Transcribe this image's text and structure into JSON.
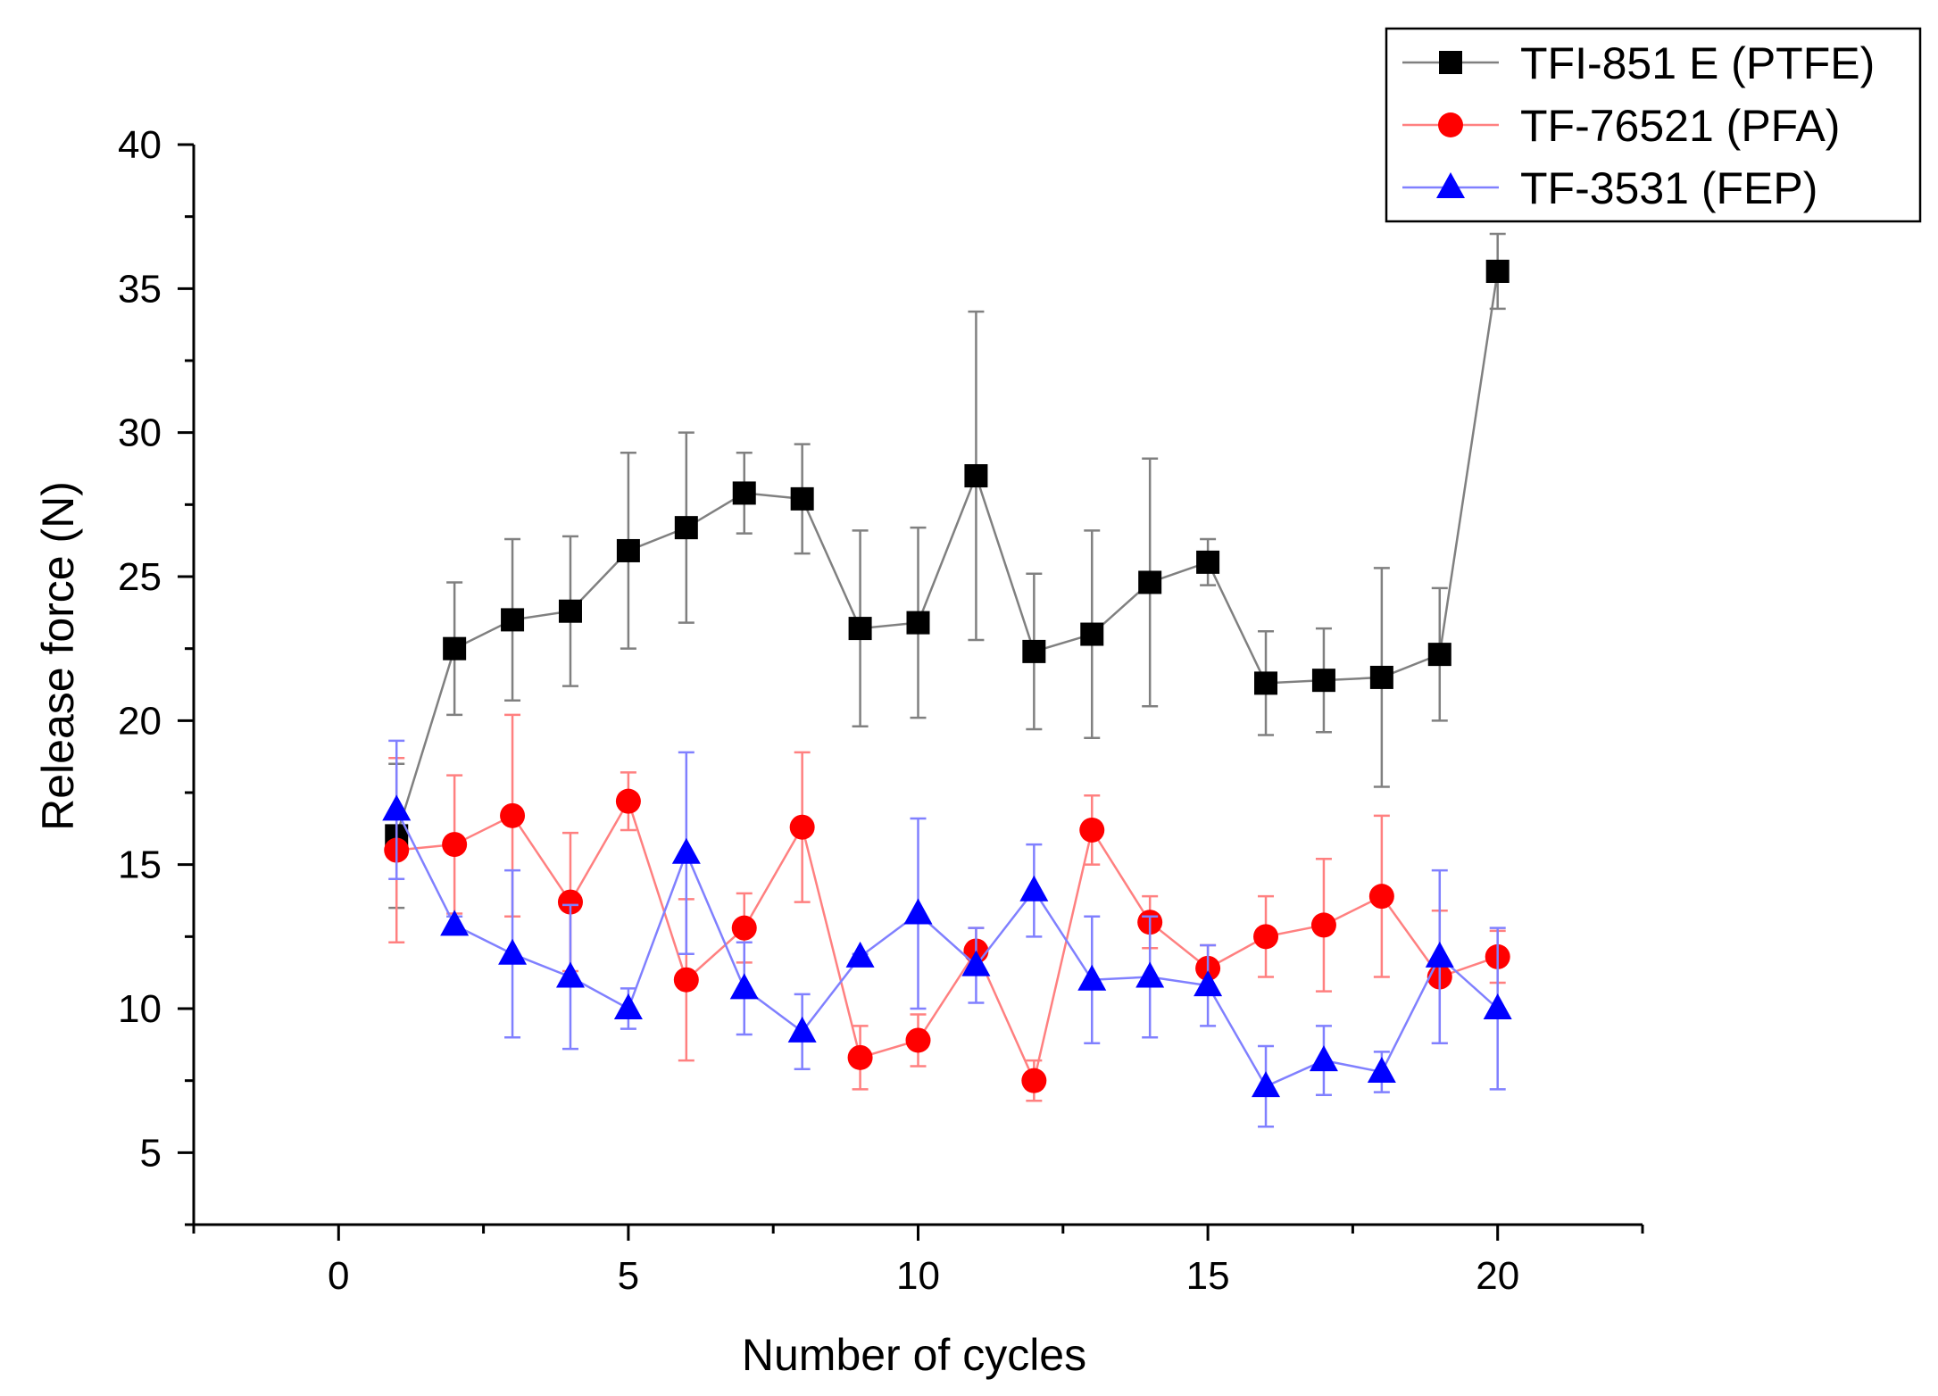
{
  "chart_data": {
    "type": "line",
    "title": "",
    "xlabel": "Number of cycles",
    "ylabel": "Release force (N)",
    "xlim": [
      -2.5,
      22.5
    ],
    "ylim": [
      2.5,
      40
    ],
    "x_ticks": [
      0,
      5,
      10,
      15,
      20
    ],
    "x_tick_labels": [
      "0",
      "5",
      "10",
      "15",
      "20"
    ],
    "y_ticks": [
      5,
      10,
      15,
      20,
      25,
      30,
      35,
      40
    ],
    "y_tick_labels": [
      "5",
      "10",
      "15",
      "20",
      "25",
      "30",
      "35",
      "40"
    ],
    "grid": false,
    "legend_position": "top-right",
    "x": [
      1,
      2,
      3,
      4,
      5,
      6,
      7,
      8,
      9,
      10,
      11,
      12,
      13,
      14,
      15,
      16,
      17,
      18,
      19,
      20
    ],
    "series": [
      {
        "name": "TFI-851 E (PTFE)",
        "color": "#000000",
        "line_color": "#808080",
        "marker": "square",
        "values": [
          16.0,
          22.5,
          23.5,
          23.8,
          25.9,
          26.7,
          27.9,
          27.7,
          23.2,
          23.4,
          28.5,
          22.4,
          23.0,
          24.8,
          25.5,
          21.3,
          21.4,
          21.5,
          22.3,
          35.6
        ],
        "errors": [
          2.5,
          2.3,
          2.8,
          2.6,
          3.4,
          3.3,
          1.4,
          1.9,
          3.4,
          3.3,
          5.7,
          2.7,
          3.6,
          4.3,
          0.8,
          1.8,
          1.8,
          3.8,
          2.3,
          1.3
        ]
      },
      {
        "name": "TF-76521 (PFA)",
        "color": "#ff0000",
        "line_color": "#ff8080",
        "marker": "circle",
        "values": [
          15.5,
          15.7,
          16.7,
          13.7,
          17.2,
          11.0,
          12.8,
          16.3,
          8.3,
          8.9,
          12.0,
          7.5,
          16.2,
          13.0,
          11.4,
          12.5,
          12.9,
          13.9,
          11.1,
          11.8
        ],
        "errors": [
          3.2,
          2.4,
          3.5,
          2.4,
          1.0,
          2.8,
          1.2,
          2.6,
          1.1,
          0.9,
          0.8,
          0.7,
          1.2,
          0.9,
          0.8,
          1.4,
          2.3,
          2.8,
          2.3,
          0.9
        ]
      },
      {
        "name": "TF-3531 (FEP)",
        "color": "#0000ff",
        "line_color": "#8080ff",
        "marker": "triangle",
        "values": [
          16.9,
          12.9,
          11.9,
          11.1,
          10.0,
          15.4,
          10.7,
          9.2,
          11.8,
          13.3,
          11.5,
          14.1,
          11.0,
          11.1,
          10.8,
          7.3,
          8.2,
          7.8,
          11.8,
          10.0
        ],
        "errors": [
          2.4,
          0.3,
          2.9,
          2.5,
          0.7,
          3.5,
          1.6,
          1.3,
          0.1,
          3.3,
          1.3,
          1.6,
          2.2,
          2.1,
          1.4,
          1.4,
          1.2,
          0.7,
          3.0,
          2.8
        ]
      }
    ]
  }
}
